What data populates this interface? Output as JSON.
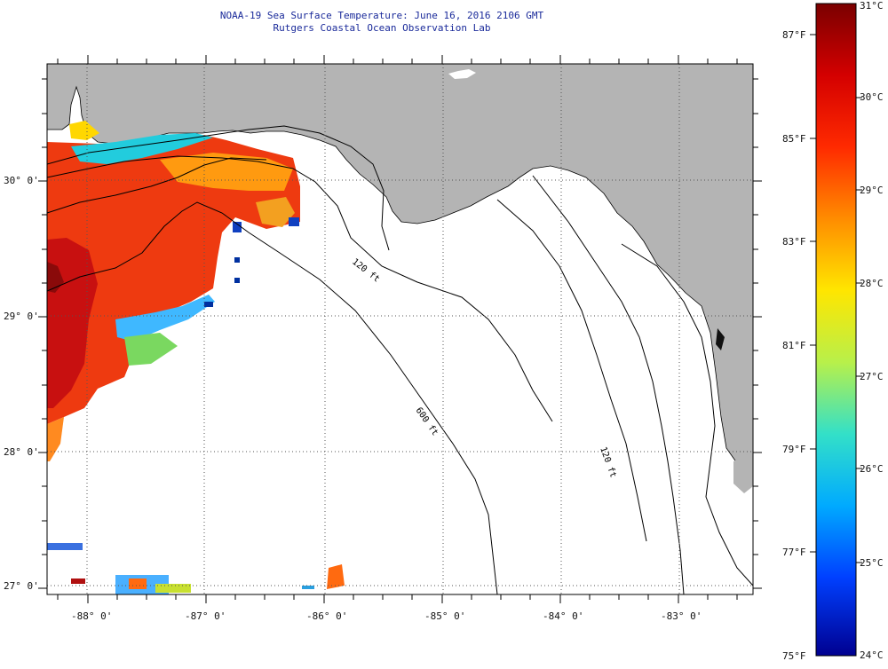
{
  "title": {
    "line1": "NOAA-19 Sea Surface Temperature:  June 16, 2016 2106 GMT",
    "line2": "Rutgers Coastal Ocean Observation Lab"
  },
  "map": {
    "lon_labels": [
      "-88° 0'",
      "-87° 0'",
      "-86° 0'",
      "-85° 0'",
      "-84° 0'",
      "-83° 0'"
    ],
    "lat_labels": [
      "30° 0'",
      "29° 0'",
      "28° 0'",
      "27° 0'"
    ],
    "depth_labels": [
      "120 ft",
      "600 ft",
      "120 ft"
    ],
    "colors": {
      "land": "#b4b4b4",
      "ocean": "#ffffff",
      "contour": "#000000"
    }
  },
  "colorbar": {
    "f_labels": [
      "87°F",
      "85°F",
      "83°F",
      "81°F",
      "79°F",
      "77°F",
      "75°F"
    ],
    "c_labels": [
      "31°C",
      "30°C",
      "29°C",
      "28°C",
      "27°C",
      "26°C",
      "25°C",
      "24°C"
    ],
    "stops": [
      "#7a0000",
      "#d40000",
      "#ff2a00",
      "#ff8c00",
      "#ffe600",
      "#b8f04a",
      "#33e0c8",
      "#00aaff",
      "#0040ff",
      "#000090"
    ]
  }
}
